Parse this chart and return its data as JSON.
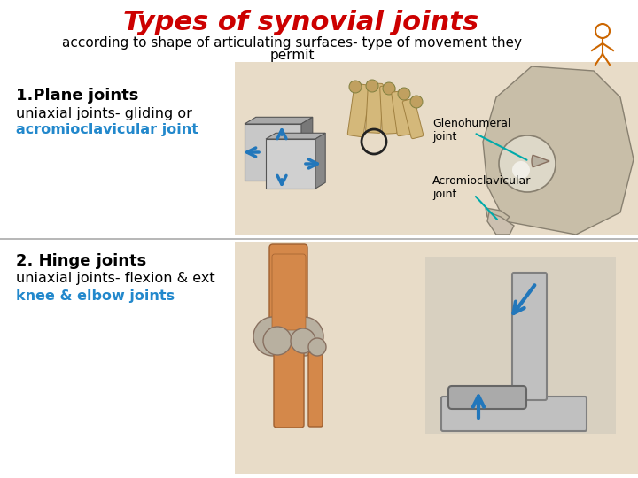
{
  "title": "Types of synovial joints",
  "subtitle": "according to shape of articulating surfaces- type of movement they",
  "subtitle2": "permit",
  "title_color": "#cc0000",
  "subtitle_color": "#000000",
  "bg_color": "#ffffff",
  "section1_heading": "1.Plane joints",
  "section1_heading_color": "#000000",
  "section1_line1": "uniaxial joints- gliding or",
  "section1_line1_color": "#000000",
  "section1_line2": "acromioclavicular joint",
  "section1_line2_color": "#2288cc",
  "section2_heading": "2. Hinge joints",
  "section2_heading_color": "#000000",
  "section2_line1": "uniaxial joints- flexion & ext",
  "section2_line1_color": "#000000",
  "section2_line2": "knee & elbow joints",
  "section2_line2_color": "#2288cc",
  "divider_color": "#aaaaaa",
  "img_bg_upper": "#e8dcc8",
  "img_bg_lower": "#e8dcc8",
  "label_acromio": "Acromioclavicular\njoint",
  "label_gleno": "Glenohumeral\njoint",
  "figsize": [
    7.2,
    5.4
  ],
  "dpi": 100
}
